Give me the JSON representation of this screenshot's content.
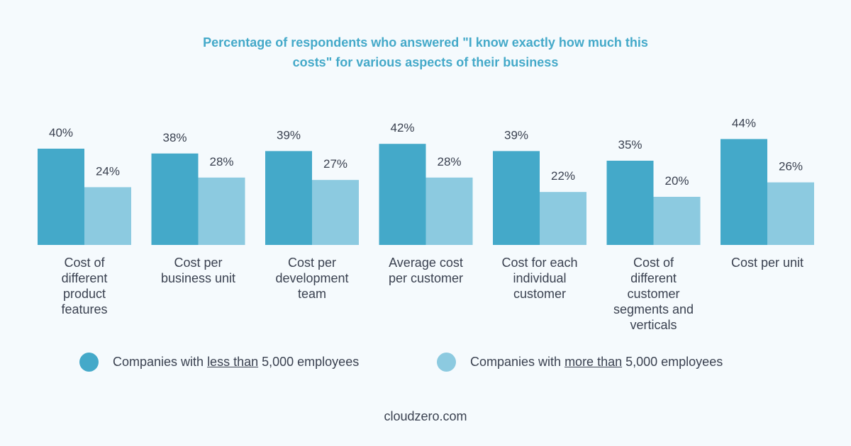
{
  "colors": {
    "series_less": "#44a9c9",
    "series_more": "#8ccae0",
    "title": "#44a9c9",
    "text": "#3a4150"
  },
  "chart_data": {
    "type": "bar",
    "title_line1": "Percentage of respondents who answered \"I know exactly how much this",
    "title_line2": "costs\" for various aspects of their business",
    "categories": [
      [
        "Cost of",
        "different",
        "product",
        "features"
      ],
      [
        "Cost per",
        "business unit"
      ],
      [
        "Cost per",
        "development",
        "team"
      ],
      [
        "Average cost",
        "per customer"
      ],
      [
        "Cost for each",
        "individual",
        "customer"
      ],
      [
        "Cost of",
        "different",
        "customer",
        "segments and",
        "verticals"
      ],
      [
        "Cost per unit"
      ]
    ],
    "series": [
      {
        "name": "Companies with less than 5,000 employees",
        "values": [
          40,
          38,
          39,
          42,
          39,
          35,
          44
        ],
        "labels": [
          "40%",
          "38%",
          "39%",
          "42%",
          "39%",
          "35%",
          "44%"
        ]
      },
      {
        "name": "Companies with more than 5,000 employees",
        "values": [
          24,
          28,
          27,
          28,
          22,
          20,
          26
        ],
        "labels": [
          "24%",
          "28%",
          "27%",
          "28%",
          "22%",
          "20%",
          "26%"
        ]
      }
    ],
    "ylim": [
      0,
      100
    ],
    "unit": "%"
  },
  "legend": [
    {
      "prefix": "Companies with ",
      "emph": "less than",
      "suffix": " 5,000 employees"
    },
    {
      "prefix": "Companies with ",
      "emph": "more than",
      "suffix": " 5,000 employees"
    }
  ],
  "footer": "cloudzero.com"
}
